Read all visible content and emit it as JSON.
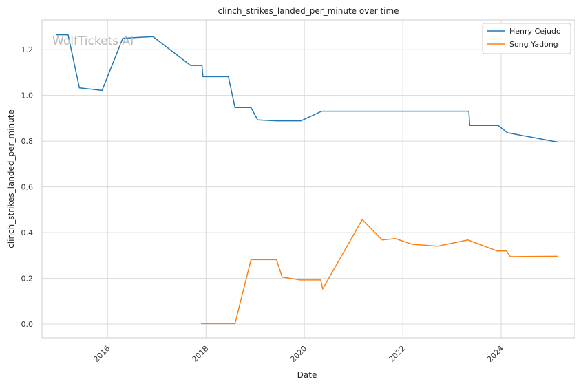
{
  "chart_data": {
    "type": "line",
    "title": "clinch_strikes_landed_per_minute over time",
    "xlabel": "Date",
    "ylabel": "clinch_strikes_landed_per_minute",
    "watermark": "WolfTickets.AI",
    "xlim": [
      "2014-09-01",
      "2025-07-01"
    ],
    "ylim": [
      -0.06,
      1.33
    ],
    "x_ticks": [
      "2016-01-01",
      "2018-01-01",
      "2020-01-01",
      "2022-01-01",
      "2024-01-01"
    ],
    "x_tick_labels": [
      "2016",
      "2018",
      "2020",
      "2022",
      "2024"
    ],
    "y_ticks": [
      0.0,
      0.2,
      0.4,
      0.6,
      0.8,
      1.0,
      1.2
    ],
    "y_tick_labels": [
      "0.0",
      "0.2",
      "0.4",
      "0.6",
      "0.8",
      "1.0",
      "1.2"
    ],
    "grid": true,
    "legend_position": "top-right",
    "series": [
      {
        "name": "Henry Cejudo",
        "color": "#1f77b4",
        "points": [
          {
            "x": "2014-12-13",
            "y": 1.265
          },
          {
            "x": "2015-03-14",
            "y": 1.265
          },
          {
            "x": "2015-06-06",
            "y": 1.033
          },
          {
            "x": "2015-11-21",
            "y": 1.022
          },
          {
            "x": "2016-04-23",
            "y": 1.25
          },
          {
            "x": "2016-12-03",
            "y": 1.257
          },
          {
            "x": "2017-09-09",
            "y": 1.131
          },
          {
            "x": "2017-12-02",
            "y": 1.131
          },
          {
            "x": "2017-12-09",
            "y": 1.082
          },
          {
            "x": "2018-06-16",
            "y": 1.082
          },
          {
            "x": "2018-08-04",
            "y": 0.947
          },
          {
            "x": "2018-12-01",
            "y": 0.947
          },
          {
            "x": "2019-01-19",
            "y": 0.893
          },
          {
            "x": "2019-06-08",
            "y": 0.889
          },
          {
            "x": "2019-12-07",
            "y": 0.889
          },
          {
            "x": "2020-05-09",
            "y": 0.931
          },
          {
            "x": "2023-05-06",
            "y": 0.931
          },
          {
            "x": "2023-05-13",
            "y": 0.869
          },
          {
            "x": "2023-12-09",
            "y": 0.869
          },
          {
            "x": "2024-02-17",
            "y": 0.837
          },
          {
            "x": "2025-02-22",
            "y": 0.796
          }
        ]
      },
      {
        "name": "Song Yadong",
        "color": "#ff7f0e",
        "points": [
          {
            "x": "2017-11-25",
            "y": 0.002
          },
          {
            "x": "2018-08-04",
            "y": 0.002
          },
          {
            "x": "2018-12-01",
            "y": 0.282
          },
          {
            "x": "2019-06-08",
            "y": 0.282
          },
          {
            "x": "2019-07-20",
            "y": 0.206
          },
          {
            "x": "2019-11-30",
            "y": 0.193
          },
          {
            "x": "2020-05-02",
            "y": 0.193
          },
          {
            "x": "2020-05-16",
            "y": 0.154
          },
          {
            "x": "2021-03-06",
            "y": 0.457
          },
          {
            "x": "2021-08-01",
            "y": 0.368
          },
          {
            "x": "2021-11-06",
            "y": 0.374
          },
          {
            "x": "2022-03-12",
            "y": 0.349
          },
          {
            "x": "2022-09-17",
            "y": 0.341
          },
          {
            "x": "2023-04-29",
            "y": 0.368
          },
          {
            "x": "2023-12-02",
            "y": 0.32
          },
          {
            "x": "2024-02-10",
            "y": 0.32
          },
          {
            "x": "2024-03-09",
            "y": 0.295
          },
          {
            "x": "2025-02-22",
            "y": 0.297
          }
        ]
      }
    ]
  }
}
